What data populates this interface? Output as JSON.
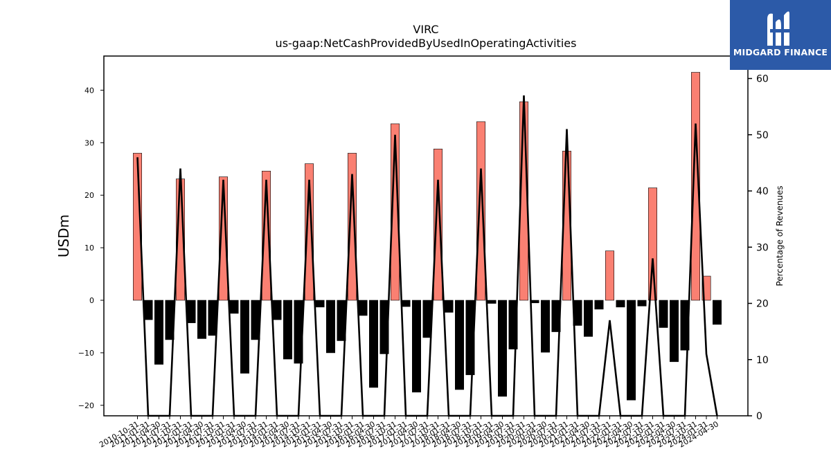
{
  "brand": {
    "name": "MIDGARD FINANCE",
    "background": "#2c5aa8",
    "text_color": "#ffffff",
    "icon": "mh-monogram-icon"
  },
  "chart_data": {
    "type": "bar",
    "title": "VIRC",
    "subtitle": "us-gaap:NetCashProvidedByUsedInOperatingActivities",
    "ylabel": "USDm",
    "y2label": "Percentage of Revenues",
    "ylim": [
      -22,
      46.5
    ],
    "y2lim": [
      0,
      64
    ],
    "yticks": [
      -20,
      -10,
      0,
      10,
      20,
      30,
      40
    ],
    "y2ticks": [
      0,
      10,
      20,
      30,
      40,
      50,
      60
    ],
    "grid": false,
    "colors": {
      "positive": "#fa8072",
      "negative": "#000000",
      "line": "#000000",
      "edge": "#000000"
    },
    "categories": [
      "2010-10-31",
      "2011-01-31",
      "2011-04-30",
      "2011-07-31",
      "2011-10-31",
      "2012-01-31",
      "2012-04-30",
      "2012-07-31",
      "2012-10-31",
      "2013-01-31",
      "2013-04-30",
      "2013-07-31",
      "2013-10-31",
      "2014-01-31",
      "2014-04-30",
      "2014-07-31",
      "2014-10-31",
      "2015-01-31",
      "2015-04-30",
      "2015-07-31",
      "2015-10-31",
      "2016-01-31",
      "2016-04-30",
      "2016-07-31",
      "2016-10-31",
      "2017-01-31",
      "2017-04-30",
      "2017-07-31",
      "2017-10-31",
      "2018-01-31",
      "2018-04-30",
      "2018-07-31",
      "2018-10-31",
      "2019-01-31",
      "2019-04-30",
      "2019-07-31",
      "2019-10-31",
      "2020-01-31",
      "2020-04-30",
      "2020-07-31",
      "2020-10-31",
      "2021-01-31",
      "2021-04-30",
      "2021-07-31",
      "2021-10-31",
      "2022-01-31",
      "2022-04-30",
      "2022-07-31",
      "2022-10-31",
      "2023-01-31",
      "2023-04-30",
      "2023-07-31",
      "2023-10-31",
      "2024-01-31",
      "2024-04-30"
    ],
    "series": [
      {
        "kind": "bar",
        "axis": "left",
        "values": [
          28.0,
          -3.7,
          -12.2,
          -7.5,
          23.1,
          -4.3,
          -7.3,
          -6.7,
          23.5,
          -2.5,
          -13.9,
          -7.5,
          24.6,
          -3.7,
          -11.2,
          -12.0,
          26.0,
          -1.3,
          -10.0,
          -7.7,
          28.0,
          -2.9,
          -16.6,
          -10.2,
          33.6,
          -1.2,
          -17.5,
          -7.1,
          28.8,
          -2.3,
          -17.0,
          -14.2,
          34.0,
          -0.6,
          -18.3,
          -9.3,
          37.8,
          -0.5,
          -9.9,
          -6.0,
          28.4,
          -4.8,
          -6.9,
          -1.7,
          9.4,
          -1.3,
          -19.0,
          -1.1,
          21.4,
          -5.2,
          -11.7,
          -9.5,
          43.4,
          4.6,
          -4.6
        ]
      },
      {
        "kind": "line",
        "axis": "right",
        "values": [
          46,
          0,
          0,
          0,
          44,
          0,
          0,
          0,
          42,
          0,
          0,
          0,
          42,
          0,
          0,
          0,
          42,
          0,
          0,
          0,
          43,
          0,
          0,
          0,
          50,
          0,
          0,
          0,
          42,
          0,
          0,
          0,
          44,
          0,
          0,
          0,
          57,
          0,
          0,
          0,
          51,
          0,
          0,
          0,
          17,
          0,
          0,
          0,
          28,
          0,
          0,
          0,
          52,
          11,
          0
        ]
      }
    ]
  }
}
